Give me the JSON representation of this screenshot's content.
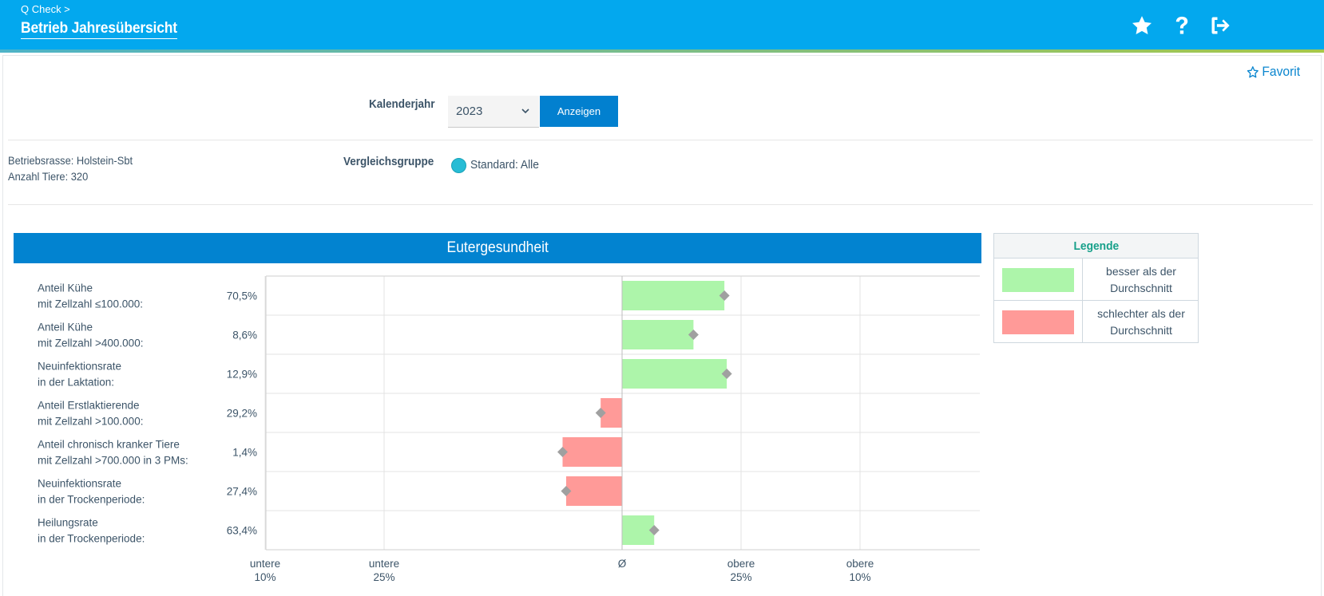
{
  "header": {
    "breadcrumb": "Q Check >",
    "title": "Betrieb Jahresübersicht",
    "icons": [
      "star-icon",
      "question-icon",
      "logout-icon"
    ]
  },
  "favorite": {
    "label": "Favorit"
  },
  "filter": {
    "year_label": "Kalenderjahr",
    "year_value": "2023",
    "show_button": "Anzeigen"
  },
  "farm": {
    "breed": "Betriebsrasse: Holstein-Sbt",
    "animals": "Anzahl Tiere: 320"
  },
  "comparison": {
    "label": "Vergleichsgruppe",
    "option": "Standard: Alle"
  },
  "colors": {
    "header": "#03a8ee",
    "accent": "#0283d0",
    "better": "#adf5aa",
    "worse": "#ff9a98",
    "marker": "#a0a0a0",
    "legend_title": "#17a08a"
  },
  "legend": {
    "title": "Legende",
    "items": [
      {
        "label": "besser als der Durchschnitt",
        "color": "#adf5aa"
      },
      {
        "label": "schlechter als der Durchschnitt",
        "color": "#ff9a98"
      }
    ]
  },
  "chart_data": {
    "type": "bar",
    "title": "Eutergesundheit",
    "orientation": "horizontal",
    "x_ticks": [
      {
        "line1": "untere",
        "line2": "10%",
        "pos": -3
      },
      {
        "line1": "untere",
        "line2": "25%",
        "pos": -2
      },
      {
        "line1": "Ø",
        "line2": "",
        "pos": 0
      },
      {
        "line1": "obere",
        "line2": "25%",
        "pos": 1
      },
      {
        "line1": "obere",
        "line2": "10%",
        "pos": 2
      }
    ],
    "x_range": [
      -3,
      3
    ],
    "grid": true,
    "rows": [
      {
        "line1": "Anteil Kühe",
        "line2": "mit Zellzahl ≤100.000:",
        "value_label": "70,5%",
        "bar": 0.86,
        "marker": 0.86,
        "better": true
      },
      {
        "line1": "Anteil Kühe",
        "line2": "mit Zellzahl >400.000:",
        "value_label": "8,6%",
        "bar": 0.6,
        "marker": 0.6,
        "better": true
      },
      {
        "line1": "Neuinfektionsrate",
        "line2": "in der Laktation:",
        "value_label": "12,9%",
        "bar": 0.88,
        "marker": 0.88,
        "better": true
      },
      {
        "line1": "Anteil Erstlaktierende",
        "line2": "mit Zellzahl >100.000:",
        "value_label": "29,2%",
        "bar": -0.18,
        "marker": -0.18,
        "better": false
      },
      {
        "line1": "Anteil chronisch kranker Tiere",
        "line2": "mit Zellzahl >700.000 in 3 PMs:",
        "value_label": "1,4%",
        "bar": -0.5,
        "marker": -0.5,
        "better": false
      },
      {
        "line1": "Neuinfektionsrate",
        "line2": "in der Trockenperiode:",
        "value_label": "27,4%",
        "bar": -0.47,
        "marker": -0.47,
        "better": false
      },
      {
        "line1": "Heilungsrate",
        "line2": "in der Trockenperiode:",
        "value_label": "63,4%",
        "bar": 0.27,
        "marker": 0.27,
        "better": true
      }
    ]
  }
}
